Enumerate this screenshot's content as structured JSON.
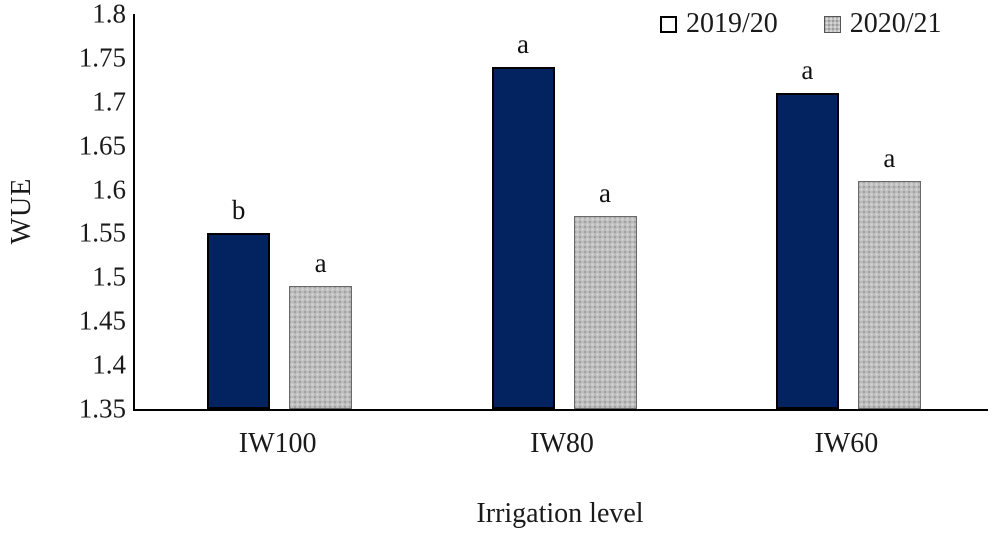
{
  "figure": {
    "y_axis_title": "WUE",
    "x_axis_title": "Irrigation level",
    "background": "#ffffff",
    "axis_color": "#000000"
  },
  "legend": {
    "items": [
      {
        "label": "2019/20",
        "color": "#032260",
        "pattern": "solid"
      },
      {
        "label": "2020/21",
        "color": "#bcbcbc",
        "pattern": "stipple"
      }
    ]
  },
  "chart_data": {
    "type": "bar",
    "title": "",
    "xlabel": "Irrigation level",
    "ylabel": "WUE",
    "categories": [
      "IW100",
      "IW80",
      "IW60"
    ],
    "series": [
      {
        "name": "2019/20",
        "color": "#032260",
        "pattern": "solid",
        "values": [
          1.55,
          1.74,
          1.71
        ],
        "letters": [
          "b",
          "a",
          "a"
        ]
      },
      {
        "name": "2020/21",
        "color": "#bcbcbc",
        "pattern": "stipple",
        "values": [
          1.49,
          1.57,
          1.61
        ],
        "letters": [
          "a",
          "a",
          "a"
        ]
      }
    ],
    "ylim": [
      1.35,
      1.8
    ],
    "ytick_step": 0.05,
    "ytick_labels": [
      "1.8",
      "1.75",
      "1.7",
      "1.65",
      "1.6",
      "1.55",
      "1.5",
      "1.45",
      "1.4",
      "1.35"
    ],
    "grid": false,
    "legend_position": "top-right"
  }
}
